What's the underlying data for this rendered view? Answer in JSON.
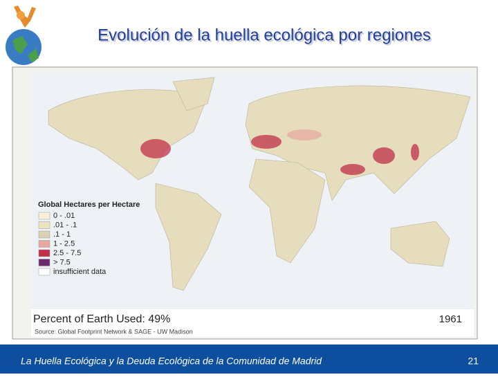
{
  "header": {
    "title": "Evolución de la huella ecológica por regiones"
  },
  "map": {
    "legend": {
      "title": "Global Hectares per Hectare",
      "items": [
        {
          "label": "0 - .01",
          "color": "#f6f0d8"
        },
        {
          "label": ".01 - .1",
          "color": "#ece3bf"
        },
        {
          "label": ".1 - 1",
          "color": "#d9d3b4"
        },
        {
          "label": "1 - 2.5",
          "color": "#e8a9a0"
        },
        {
          "label": "2.5 - 7.5",
          "color": "#c0304a"
        },
        {
          "label": "> 7.5",
          "color": "#6a2a6e"
        },
        {
          "label": "insufficient data",
          "color": "#ffffff"
        }
      ]
    },
    "summary": "Percent of Earth Used: 49%",
    "year": "1961",
    "source": "Source: Global Footprint Network & SAGE - UW Madison"
  },
  "footer": {
    "text": "La Huella Ecológica y la Deuda Ecológica de la Comunidad de Madrid",
    "page": "21"
  }
}
